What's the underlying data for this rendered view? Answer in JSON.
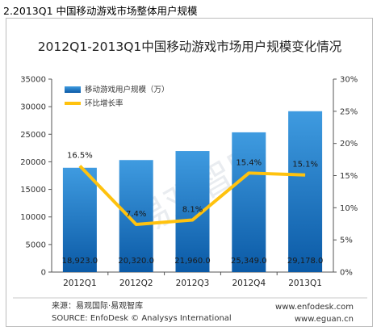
{
  "heading": "2.2013Q1 中国移动游戏市场整体用户规模",
  "chart_data": {
    "type": "bar",
    "title": "2012Q1-2013Q1中国移动游戏市场用户规模变化情况",
    "categories": [
      "2012Q1",
      "2012Q2",
      "2012Q3",
      "2012Q4",
      "2013Q1"
    ],
    "series": [
      {
        "name": "移动游戏用户规模（万）",
        "type": "bar",
        "axis": "left",
        "values": [
          18923.0,
          20320.0,
          21960.0,
          25349.0,
          29178.0
        ],
        "labels": [
          "18,923.0",
          "20,320.0",
          "21,960.0",
          "25,349.0",
          "29,178.0"
        ]
      },
      {
        "name": "环比增长率",
        "type": "line",
        "axis": "right",
        "values": [
          16.5,
          7.4,
          8.1,
          15.4,
          15.1
        ],
        "labels": [
          "16.5%",
          "7.4%",
          "8.1%",
          "15.4%",
          "15.1%"
        ]
      }
    ],
    "ylim": [
      0,
      35000
    ],
    "yticks": [
      "0",
      "5000",
      "10000",
      "15000",
      "20000",
      "25000",
      "30000",
      "35000"
    ],
    "y2lim": [
      0,
      30
    ],
    "y2ticks": [
      "0%",
      "5%",
      "10%",
      "15%",
      "20%",
      "25%",
      "30%"
    ],
    "legend": "top-left",
    "grid": false,
    "source_cn": "来源：易观国际·易观智库",
    "source_en": "SOURCE: EnfoDesk © Analysys International",
    "site1": "www.enfodesk.com",
    "site2": "www.eguan.cn",
    "watermark": "易观智库"
  },
  "colors": {
    "bar_top": "#3f9be0",
    "bar_bottom": "#0b5aa6",
    "line": "#ffc20e",
    "axis": "#555555"
  }
}
